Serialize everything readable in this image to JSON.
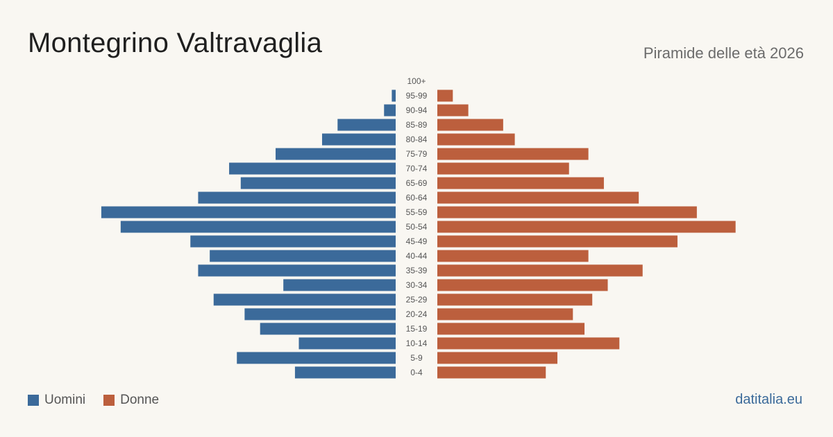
{
  "header": {
    "title": "Montegrino Valtravaglia",
    "subtitle": "Piramide delle età 2026"
  },
  "legend": {
    "men_label": "Uomini",
    "women_label": "Donne"
  },
  "footer": {
    "site": "datitalia.eu"
  },
  "colors": {
    "men": "#3b6a9a",
    "women": "#bc5f3d",
    "background": "#f9f7f2",
    "age_label": "#555555"
  },
  "chart_data": {
    "type": "bar",
    "orientation": "horizontal-pyramid",
    "title": "Montegrino Valtravaglia",
    "subtitle": "Piramide delle età 2026",
    "categories": [
      "100+",
      "95-99",
      "90-94",
      "85-89",
      "80-84",
      "75-79",
      "70-74",
      "65-69",
      "60-64",
      "55-59",
      "50-54",
      "45-49",
      "40-44",
      "35-39",
      "30-34",
      "25-29",
      "20-24",
      "15-19",
      "10-14",
      "5-9",
      "0-4"
    ],
    "series": [
      {
        "name": "Uomini",
        "values": [
          0,
          1,
          3,
          15,
          19,
          31,
          43,
          40,
          51,
          76,
          71,
          53,
          48,
          51,
          29,
          47,
          39,
          35,
          25,
          41,
          26
        ]
      },
      {
        "name": "Donne",
        "values": [
          0,
          4,
          8,
          17,
          20,
          39,
          34,
          43,
          52,
          67,
          77,
          62,
          39,
          53,
          44,
          40,
          35,
          38,
          47,
          31,
          28
        ]
      }
    ],
    "grid": false,
    "legend_position": "bottom-left"
  }
}
